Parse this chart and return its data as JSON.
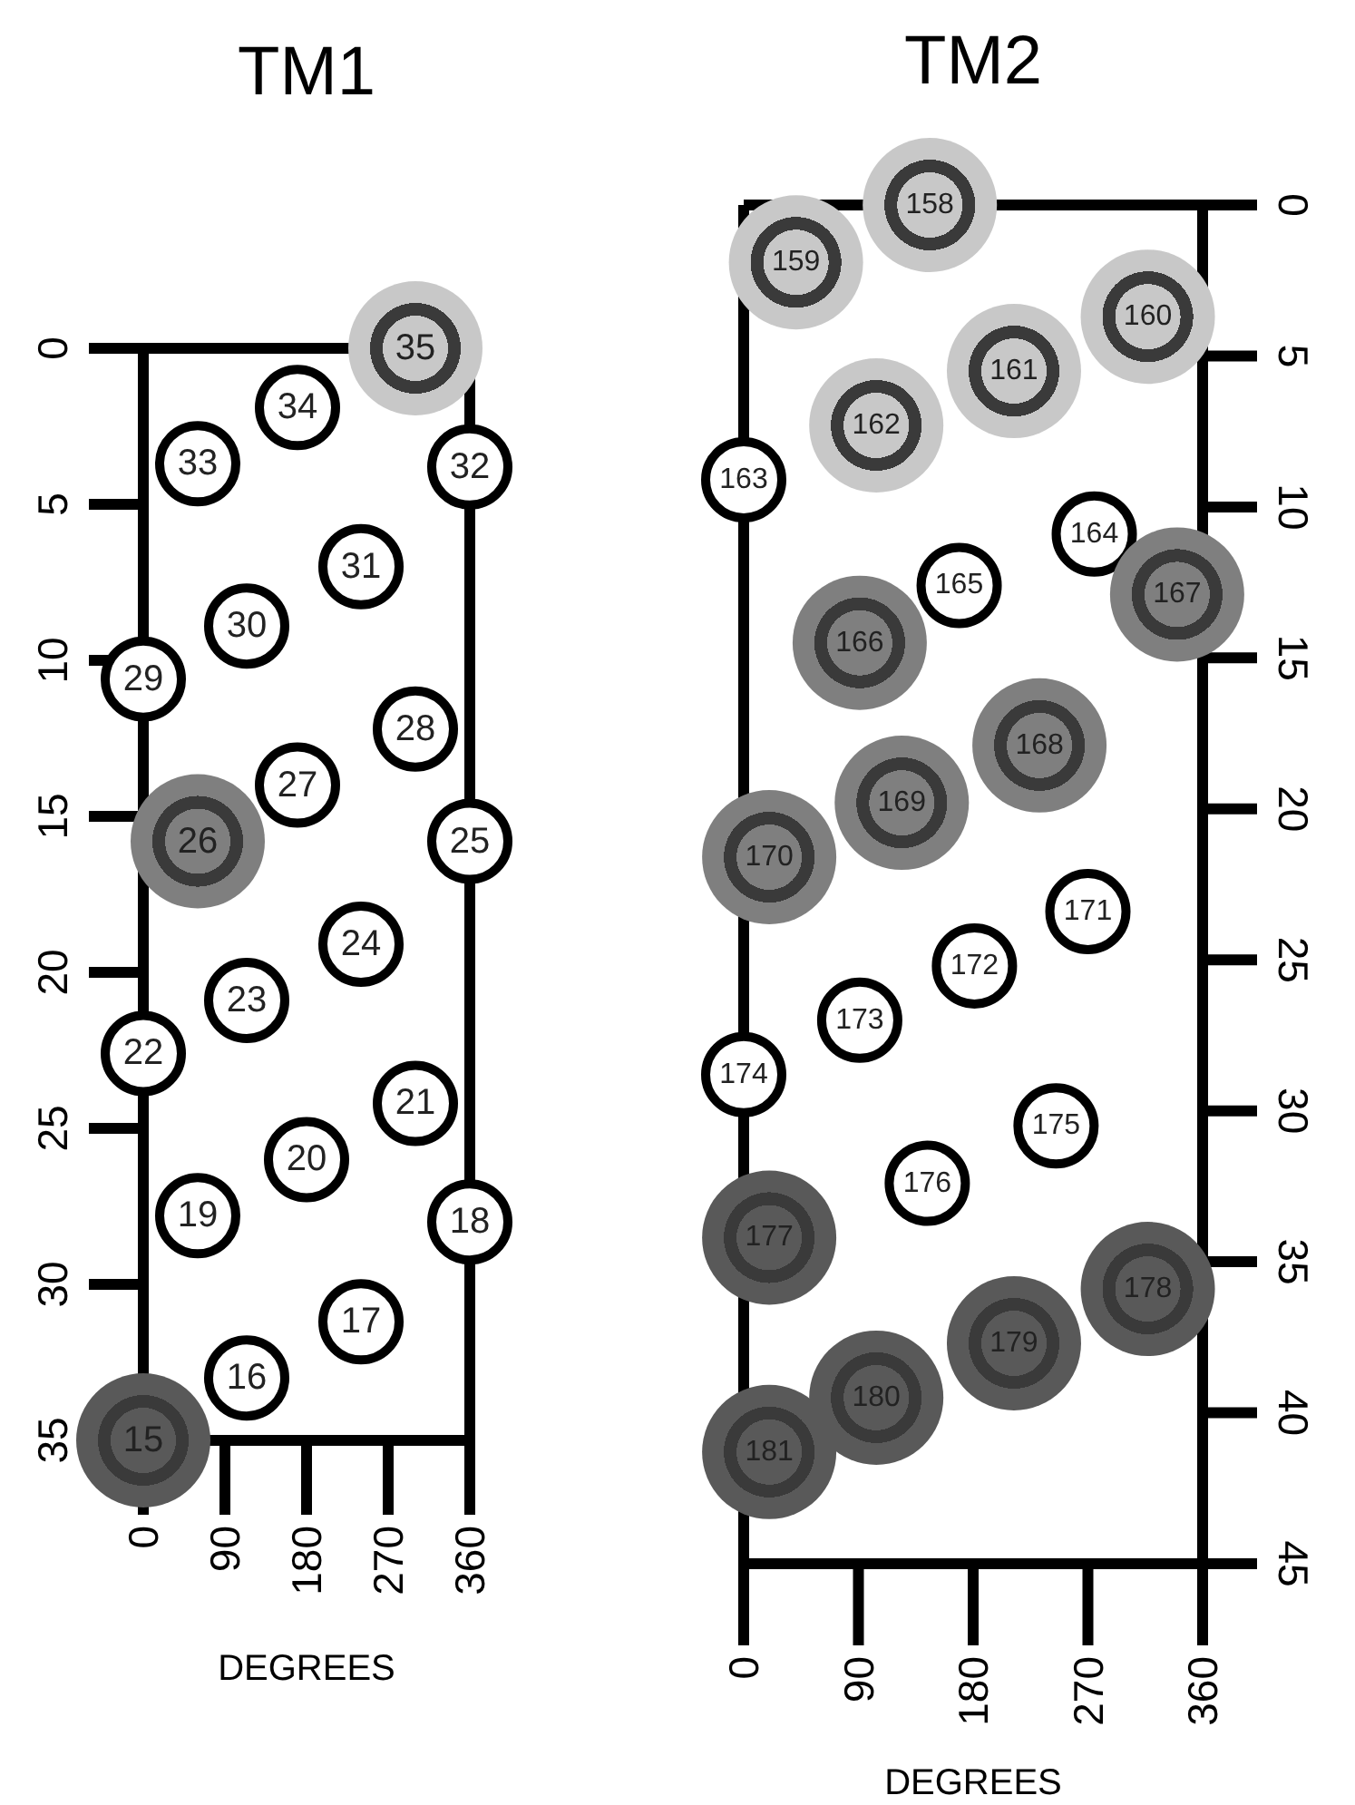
{
  "chart_data": [
    {
      "type": "scatter",
      "title": "TM1",
      "xlabel": "DEGREES",
      "xlim": [
        0,
        360
      ],
      "xticks": [
        0,
        90,
        180,
        270,
        360
      ],
      "ylim": [
        35,
        0
      ],
      "yticks": [
        0,
        5,
        10,
        15,
        20,
        25,
        30,
        35
      ],
      "grid": false,
      "marker": "circle",
      "series": [
        {
          "color": "#ffffff",
          "x": [
            114,
            240,
            360,
            60,
            180,
            300,
            0,
            114,
            240,
            360,
            170,
            300,
            0,
            114,
            240,
            360,
            60,
            170
          ],
          "values": [
            33.0,
            31.2,
            28.0,
            27.8,
            26.0,
            24.2,
            22.6,
            20.9,
            19.1,
            15.8,
            14.0,
            12.2,
            10.6,
            8.9,
            7.0,
            3.8,
            3.7,
            1.9
          ]
        },
        {
          "color": "#c8c8c8",
          "x": [
            300
          ],
          "values": [
            0
          ]
        },
        {
          "color": "#7f7f7f",
          "x": [
            60
          ],
          "values": [
            15.8
          ]
        },
        {
          "color": "#595959",
          "x": [
            0
          ],
          "values": [
            35
          ]
        }
      ],
      "annotations": [
        {
          "text": "16",
          "x": 114,
          "y": 33.0
        },
        {
          "text": "17",
          "x": 240,
          "y": 31.2
        },
        {
          "text": "18",
          "x": 360,
          "y": 28.0
        },
        {
          "text": "19",
          "x": 60,
          "y": 27.8
        },
        {
          "text": "20",
          "x": 180,
          "y": 26.0
        },
        {
          "text": "21",
          "x": 300,
          "y": 24.2
        },
        {
          "text": "22",
          "x": 0,
          "y": 22.6
        },
        {
          "text": "23",
          "x": 114,
          "y": 20.9
        },
        {
          "text": "24",
          "x": 240,
          "y": 19.1
        },
        {
          "text": "25",
          "x": 360,
          "y": 15.8
        },
        {
          "text": "27",
          "x": 170,
          "y": 14.0
        },
        {
          "text": "28",
          "x": 300,
          "y": 12.2
        },
        {
          "text": "29",
          "x": 0,
          "y": 10.6
        },
        {
          "text": "30",
          "x": 114,
          "y": 8.9
        },
        {
          "text": "31",
          "x": 240,
          "y": 7.0
        },
        {
          "text": "32",
          "x": 360,
          "y": 3.8
        },
        {
          "text": "33",
          "x": 60,
          "y": 3.7
        },
        {
          "text": "34",
          "x": 170,
          "y": 1.9
        },
        {
          "text": "35",
          "x": 300,
          "y": 0
        },
        {
          "text": "26",
          "x": 60,
          "y": 15.8
        },
        {
          "text": "15",
          "x": 0,
          "y": 35
        }
      ]
    },
    {
      "type": "scatter",
      "title": "TM2",
      "xlabel": "DEGREES",
      "xlim": [
        0,
        360
      ],
      "xticks": [
        0,
        90,
        180,
        270,
        360
      ],
      "ylim": [
        45,
        0
      ],
      "yticks": [
        0,
        5,
        10,
        15,
        20,
        25,
        30,
        35,
        40,
        45
      ],
      "grid": false,
      "marker": "circle",
      "series": [
        {
          "color": "#c8c8c8",
          "x": [
            146,
            41,
            317,
            212,
            104
          ],
          "values": [
            0,
            1.9,
            3.7,
            5.5,
            7.3
          ]
        },
        {
          "color": "#ffffff",
          "x": [
            0,
            275,
            169,
            270,
            181,
            91,
            0,
            245,
            144
          ],
          "values": [
            9.1,
            10.9,
            12.6,
            23.4,
            25.2,
            27.0,
            28.8,
            30.5,
            32.4
          ]
        },
        {
          "color": "#7f7f7f",
          "x": [
            91,
            340,
            232,
            124,
            20
          ],
          "values": [
            14.5,
            12.9,
            17.9,
            19.8,
            21.6
          ]
        },
        {
          "color": "#595959",
          "x": [
            20,
            317,
            212,
            104,
            20
          ],
          "values": [
            34.2,
            35.9,
            37.7,
            39.5,
            41.3
          ]
        }
      ],
      "annotations": [
        {
          "text": "158",
          "x": 146,
          "y": 0
        },
        {
          "text": "159",
          "x": 41,
          "y": 1.9
        },
        {
          "text": "160",
          "x": 317,
          "y": 3.7
        },
        {
          "text": "161",
          "x": 212,
          "y": 5.5
        },
        {
          "text": "162",
          "x": 104,
          "y": 7.3
        },
        {
          "text": "163",
          "x": 0,
          "y": 9.1
        },
        {
          "text": "164",
          "x": 275,
          "y": 10.9
        },
        {
          "text": "165",
          "x": 169,
          "y": 12.6
        },
        {
          "text": "166",
          "x": 91,
          "y": 14.5
        },
        {
          "text": "167",
          "x": 340,
          "y": 12.9
        },
        {
          "text": "168",
          "x": 232,
          "y": 17.9
        },
        {
          "text": "169",
          "x": 124,
          "y": 19.8
        },
        {
          "text": "170",
          "x": 20,
          "y": 21.6
        },
        {
          "text": "171",
          "x": 270,
          "y": 23.4
        },
        {
          "text": "172",
          "x": 181,
          "y": 25.2
        },
        {
          "text": "173",
          "x": 91,
          "y": 27.0
        },
        {
          "text": "174",
          "x": 0,
          "y": 28.8
        },
        {
          "text": "175",
          "x": 245,
          "y": 30.5
        },
        {
          "text": "176",
          "x": 144,
          "y": 32.4
        },
        {
          "text": "177",
          "x": 20,
          "y": 34.2
        },
        {
          "text": "178",
          "x": 317,
          "y": 35.9
        },
        {
          "text": "179",
          "x": 212,
          "y": 37.7
        },
        {
          "text": "180",
          "x": 104,
          "y": 39.5
        },
        {
          "text": "181",
          "x": 20,
          "y": 41.3
        }
      ]
    }
  ]
}
